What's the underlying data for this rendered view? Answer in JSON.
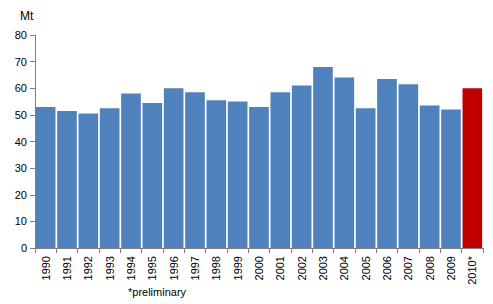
{
  "chart_data": {
    "type": "bar",
    "ylabel": "Mt",
    "annotation": "*preliminary",
    "categories": [
      "1990",
      "1991",
      "1992",
      "1993",
      "1994",
      "1995",
      "1996",
      "1997",
      "1998",
      "1999",
      "2000",
      "2001",
      "2002",
      "2003",
      "2004",
      "2005",
      "2006",
      "2007",
      "2008",
      "2009",
      "2010*"
    ],
    "values": [
      53,
      51.5,
      50.5,
      52.5,
      58,
      54.5,
      60,
      58.5,
      55.5,
      55,
      53,
      58.5,
      61,
      68,
      64,
      52.5,
      63.5,
      61.5,
      53.5,
      52,
      60
    ],
    "colors": [
      "#4f81bd",
      "#4f81bd",
      "#4f81bd",
      "#4f81bd",
      "#4f81bd",
      "#4f81bd",
      "#4f81bd",
      "#4f81bd",
      "#4f81bd",
      "#4f81bd",
      "#4f81bd",
      "#4f81bd",
      "#4f81bd",
      "#4f81bd",
      "#4f81bd",
      "#4f81bd",
      "#4f81bd",
      "#4f81bd",
      "#4f81bd",
      "#4f81bd",
      "#c00000"
    ],
    "ylim": [
      0,
      80
    ],
    "yticks": [
      0,
      10,
      20,
      30,
      40,
      50,
      60,
      70,
      80
    ],
    "grid": false
  }
}
